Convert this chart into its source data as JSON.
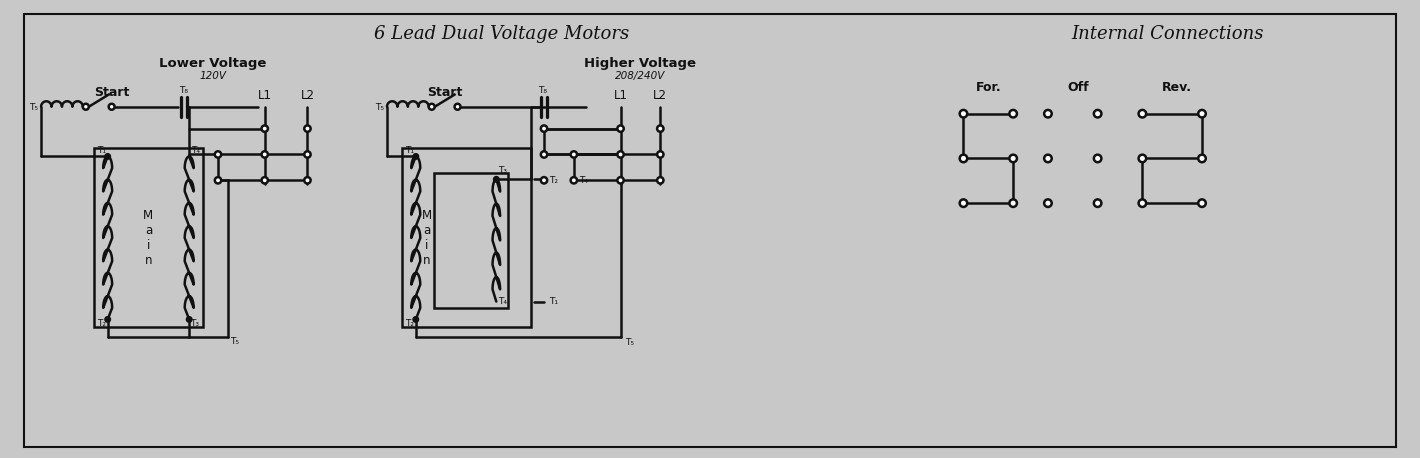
{
  "title": "6 Lead Dual Voltage Motors",
  "title2": "Internal Connections",
  "bg_color": "#c8c8c8",
  "line_color": "#111111",
  "lower_voltage_label": "Lower Voltage",
  "lower_voltage_sub": "120V",
  "higher_voltage_label": "Higher Voltage",
  "higher_voltage_sub": "208/240V",
  "start_label": "Start",
  "for_label": "For.",
  "off_label": "Off",
  "rev_label": "Rev.",
  "L1_label": "L1",
  "L2_label": "L2",
  "figw": 14.2,
  "figh": 4.58,
  "dpi": 100
}
